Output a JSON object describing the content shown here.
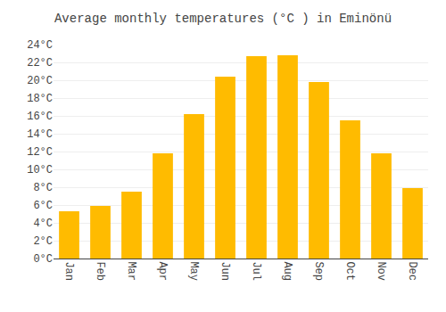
{
  "chart_data": {
    "type": "bar",
    "title": "Average monthly temperatures (°C ) in Eminönü",
    "categories": [
      "Jan",
      "Feb",
      "Mar",
      "Apr",
      "May",
      "Jun",
      "Jul",
      "Aug",
      "Sep",
      "Oct",
      "Nov",
      "Dec"
    ],
    "values": [
      5.3,
      5.9,
      7.5,
      11.8,
      16.2,
      20.4,
      22.7,
      22.8,
      19.8,
      15.5,
      11.8,
      7.9
    ],
    "color": "#FFBB00",
    "ylim": [
      0,
      24
    ],
    "yticks": [
      {
        "value": 0,
        "label": "0°C"
      },
      {
        "value": 2,
        "label": "2°C"
      },
      {
        "value": 4,
        "label": "4°C"
      },
      {
        "value": 6,
        "label": "6°C"
      },
      {
        "value": 8,
        "label": "8°C"
      },
      {
        "value": 10,
        "label": "10°C"
      },
      {
        "value": 12,
        "label": "12°C"
      },
      {
        "value": 14,
        "label": "14°C"
      },
      {
        "value": 16,
        "label": "16°C"
      },
      {
        "value": 18,
        "label": "18°C"
      },
      {
        "value": 20,
        "label": "20°C"
      },
      {
        "value": 22,
        "label": "22°C"
      },
      {
        "value": 24,
        "label": "24°C"
      }
    ],
    "grid": true
  }
}
